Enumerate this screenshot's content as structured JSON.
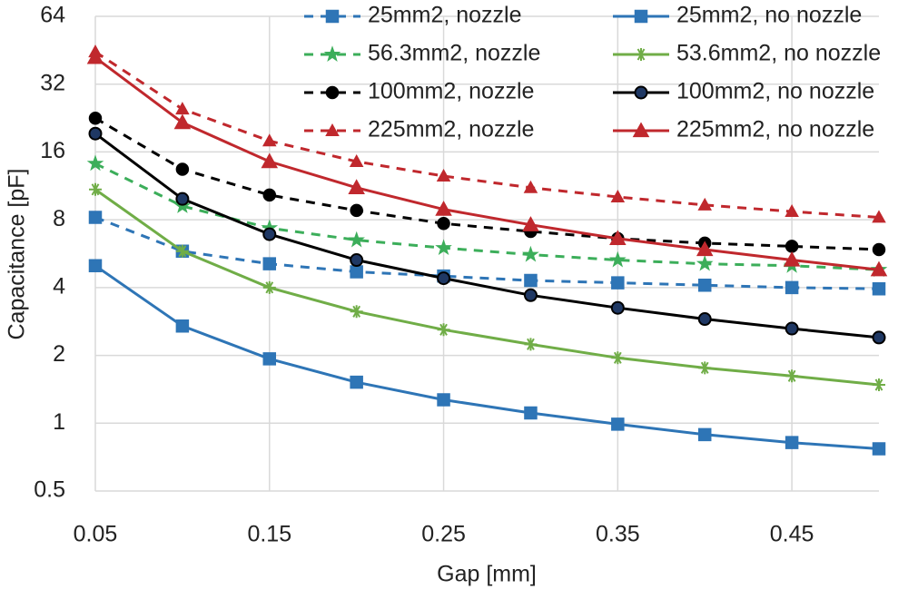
{
  "chart_data": {
    "type": "line",
    "x_label": "Gap [mm]",
    "y_label": "Capacitance [pF]",
    "log_scale_y": true,
    "grid": true,
    "legend_position": "top-right",
    "xlim": [
      0.05,
      0.5
    ],
    "xticks": [
      0.05,
      0.15,
      0.25,
      0.35,
      0.45
    ],
    "ylim": [
      0.5,
      64
    ],
    "yticks": [
      0.5,
      1,
      2,
      4,
      8,
      16,
      32,
      64
    ],
    "x": [
      0.05,
      0.1,
      0.15,
      0.2,
      0.25,
      0.3,
      0.35,
      0.4,
      0.45,
      0.5
    ],
    "series": [
      {
        "name": "25mm2, nozzle",
        "color": "#2e75b6",
        "dashed": true,
        "marker": "square",
        "values": [
          8.2,
          5.8,
          5.1,
          4.7,
          4.5,
          4.3,
          4.2,
          4.1,
          4.0,
          3.95
        ]
      },
      {
        "name": "25mm2, no nozzle",
        "color": "#2e75b6",
        "dashed": false,
        "marker": "square",
        "values": [
          5.0,
          2.7,
          1.93,
          1.52,
          1.27,
          1.11,
          0.99,
          0.89,
          0.82,
          0.77
        ]
      },
      {
        "name": "56.3mm2, nozzle",
        "color": "#3cae5a",
        "dashed": true,
        "marker": "star",
        "values": [
          14.2,
          9.2,
          7.35,
          6.5,
          6.0,
          5.6,
          5.3,
          5.1,
          5.0,
          4.8
        ]
      },
      {
        "name": "53.6mm2, no nozzle",
        "color": "#70ad47",
        "dashed": false,
        "marker": "asterisk",
        "values": [
          10.9,
          5.8,
          4.0,
          3.13,
          2.6,
          2.24,
          1.95,
          1.76,
          1.62,
          1.48
        ]
      },
      {
        "name": "100mm2, nozzle",
        "color": "#000000",
        "dashed": true,
        "marker": "dot",
        "values": [
          22.6,
          13.4,
          10.3,
          8.8,
          7.7,
          7.1,
          6.6,
          6.3,
          6.1,
          5.9
        ]
      },
      {
        "name": "100mm2, no nozzle",
        "color": "#000000",
        "dashed": false,
        "marker": "circle",
        "values": [
          19.3,
          9.9,
          6.9,
          5.3,
          4.4,
          3.7,
          3.25,
          2.9,
          2.63,
          2.4
        ]
      },
      {
        "name": "225mm2, nozzle",
        "color": "#c0282d",
        "dashed": true,
        "marker": "small-triangle",
        "values": [
          44.5,
          24.8,
          17.9,
          14.5,
          12.5,
          11.1,
          10.1,
          9.3,
          8.7,
          8.2
        ]
      },
      {
        "name": "225mm2, no nozzle",
        "color": "#c0282d",
        "dashed": false,
        "marker": "triangle",
        "values": [
          42,
          21.6,
          14.5,
          11.1,
          8.9,
          7.6,
          6.6,
          5.9,
          5.3,
          4.8
        ]
      }
    ]
  }
}
